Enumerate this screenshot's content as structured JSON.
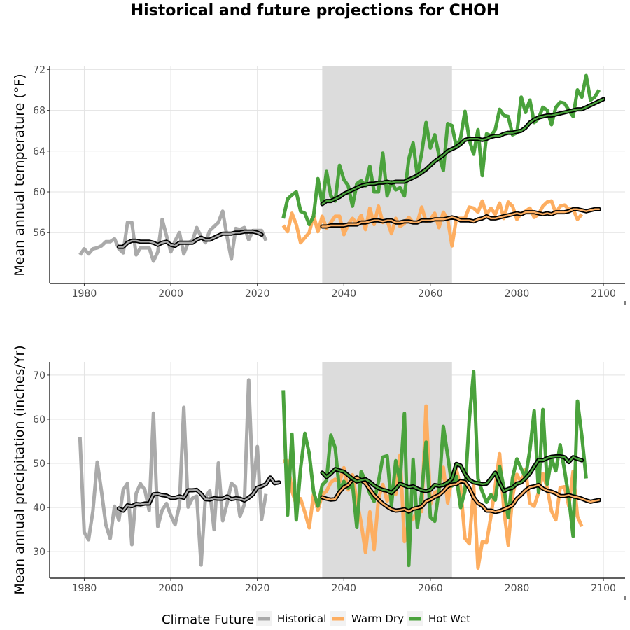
{
  "chart_data": {
    "type": "line",
    "title": "Historical and future projections for CHOH",
    "legend": {
      "title": "Climate Future",
      "placement": "bottom",
      "entries": [
        "Historical",
        "Warm Dry",
        "Hot Wet"
      ]
    },
    "colors": {
      "Historical": "#aaaaaa",
      "Warm Dry": "#fdae61",
      "Hot Wet": "#4aa23c",
      "smooth": "#000000",
      "shade": "#dcdcdc"
    },
    "shaded_period": [
      2035,
      2065
    ],
    "panels": [
      {
        "id": "temperature",
        "ylabel": "Mean annual temperature (°F)",
        "xlim": [
          1972,
          2105
        ],
        "ylim": [
          51,
          72.3
        ],
        "xticks": [
          1980,
          2000,
          2020,
          2040,
          2060,
          2080,
          2100
        ],
        "yticks": [
          56,
          60,
          64,
          68,
          72
        ],
        "grid": true,
        "series": [
          {
            "name": "Historical",
            "x_start": 1979,
            "values": [
              53.8,
              54.4,
              53.9,
              54.4,
              54.5,
              54.7,
              55.1,
              55.1,
              55.4,
              54.4,
              54.0,
              57.0,
              57.0,
              53.8,
              54.5,
              54.5,
              54.5,
              53.2,
              54.1,
              57.3,
              55.7,
              54.1,
              55.2,
              56.0,
              53.9,
              55.0,
              55.2,
              56.5,
              55.6,
              55.0,
              56.2,
              56.6,
              57.0,
              58.1,
              55.6,
              53.4,
              56.4,
              56.3,
              56.5,
              55.3,
              56.2,
              56.2,
              56.2,
              55.2
            ]
          },
          {
            "name": "Historical smooth",
            "x_start": 1988,
            "values": [
              54.6,
              54.6,
              55.0,
              55.2,
              55.2,
              55.1,
              55.1,
              55.1,
              55.0,
              54.8,
              55.0,
              55.1,
              54.8,
              54.7,
              55.0,
              55.0,
              55.0,
              55.0,
              55.3,
              55.5,
              55.3,
              55.3,
              55.5,
              55.7,
              55.9,
              55.9,
              55.9,
              56.0,
              56.0,
              56.1,
              56.1,
              56.1,
              56.0,
              55.8
            ]
          },
          {
            "name": "Warm Dry",
            "x_start": 2026,
            "values": [
              56.7,
              56.1,
              57.9,
              56.8,
              55.0,
              55.5,
              56.0,
              57.7,
              56.1,
              57.6,
              56.4,
              57.0,
              57.6,
              57.6,
              55.8,
              56.8,
              57.4,
              56.9,
              57.7,
              56.3,
              58.4,
              56.8,
              58.6,
              57.0,
              57.2,
              55.9,
              57.4,
              56.6,
              56.9,
              57.5,
              57.0,
              57.0,
              58.5,
              57.1,
              57.3,
              57.9,
              56.5,
              58.0,
              57.3,
              54.7,
              57.4,
              57.4,
              57.4,
              58.5,
              58.4,
              58.0,
              59.1,
              57.8,
              58.4,
              57.8,
              58.9,
              57.4,
              59.0,
              58.6,
              57.3,
              57.9,
              58.1,
              58.4,
              57.5,
              57.8,
              58.6,
              59.0,
              59.1,
              57.9,
              58.6,
              58.7,
              58.3,
              58.3,
              57.3,
              57.8
            ]
          },
          {
            "name": "Warm Dry smooth",
            "x_start": 2035,
            "values": [
              56.6,
              56.6,
              56.7,
              56.7,
              56.7,
              56.7,
              56.8,
              56.8,
              56.8,
              57.0,
              57.0,
              57.1,
              57.2,
              57.2,
              57.1,
              57.2,
              57.2,
              57.0,
              57.0,
              57.1,
              57.1,
              57.0,
              57.0,
              57.2,
              57.2,
              57.2,
              57.3,
              57.3,
              57.3,
              57.4,
              57.5,
              57.4,
              57.2,
              57.2,
              57.2,
              57.1,
              57.3,
              57.4,
              57.6,
              57.4,
              57.4,
              57.5,
              57.6,
              57.7,
              57.8,
              57.9,
              57.8,
              58.0,
              58.0,
              58.0,
              57.9,
              57.8,
              57.9,
              57.8,
              58.0,
              58.0,
              58.0,
              58.1,
              58.3,
              58.3,
              58.2,
              58.1,
              58.2,
              58.3,
              58.3
            ]
          },
          {
            "name": "Hot Wet",
            "x_start": 2026,
            "values": [
              57.4,
              59.3,
              59.7,
              60.0,
              58.1,
              57.9,
              56.8,
              57.6,
              61.3,
              58.8,
              62.0,
              59.6,
              59.1,
              62.6,
              61.2,
              60.6,
              58.6,
              60.8,
              61.1,
              60.6,
              62.5,
              60.0,
              60.0,
              63.8,
              59.6,
              61.0,
              60.2,
              60.4,
              59.6,
              63.2,
              64.8,
              61.6,
              63.8,
              66.8,
              64.3,
              65.6,
              63.6,
              62.1,
              66.7,
              66.5,
              64.4,
              65.3,
              67.9,
              65.1,
              63.7,
              66.1,
              61.6,
              65.7,
              65.5,
              66.1,
              68.1,
              67.5,
              67.4,
              65.6,
              65.8,
              69.3,
              67.8,
              69.0,
              66.8,
              67.2,
              68.3,
              68.0,
              66.6,
              68.3,
              68.8,
              68.7,
              68.0,
              67.4,
              70.0,
              69.3,
              71.4,
              69.0,
              69.3,
              70.0
            ]
          },
          {
            "name": "Hot Wet smooth",
            "x_start": 2035,
            "values": [
              58.8,
              59.1,
              59.1,
              59.3,
              59.5,
              59.8,
              60.0,
              60.2,
              60.4,
              60.6,
              60.7,
              60.8,
              60.8,
              60.9,
              60.9,
              61.0,
              60.9,
              61.0,
              61.0,
              61.0,
              61.2,
              61.4,
              61.6,
              61.9,
              62.2,
              62.6,
              63.0,
              63.3,
              63.6,
              64.0,
              64.2,
              64.4,
              64.7,
              65.1,
              65.2,
              65.2,
              65.2,
              65.1,
              65.2,
              65.4,
              65.5,
              65.5,
              65.7,
              65.8,
              65.8,
              65.9,
              66.0,
              66.3,
              66.8,
              67.1,
              67.3,
              67.4,
              67.5,
              67.5,
              67.6,
              67.7,
              67.8,
              67.9,
              68.0,
              68.1,
              68.1,
              68.3,
              68.5,
              68.7,
              68.9,
              69.1
            ]
          }
        ]
      },
      {
        "id": "precipitation",
        "ylabel": "Mean annual precipitation (inches/Yr)",
        "xlim": [
          1972,
          2105
        ],
        "ylim": [
          24,
          73
        ],
        "xticks": [
          1980,
          2000,
          2020,
          2040,
          2060,
          2080,
          2100
        ],
        "yticks": [
          30,
          40,
          50,
          60,
          70
        ],
        "grid": true,
        "series": [
          {
            "name": "Historical",
            "x_start": 1979,
            "values": [
              55.9,
              34.4,
              32.7,
              39.2,
              50.3,
              43.5,
              36.1,
              33.0,
              40.3,
              37.1,
              44.0,
              45.5,
              31.6,
              43.2,
              45.4,
              44.0,
              39.3,
              61.4,
              35.7,
              39.4,
              40.9,
              38.2,
              36.1,
              40.5,
              62.7,
              40.1,
              42.1,
              42.6,
              27.0,
              42.3,
              43.8,
              35.0,
              50.1,
              37.0,
              40.9,
              45.5,
              44.6,
              38.0,
              40.7,
              68.9,
              43.9,
              53.8,
              37.3,
              43.1
            ]
          },
          {
            "name": "Historical smooth",
            "x_start": 1988,
            "values": [
              39.8,
              39.3,
              40.5,
              40.3,
              40.8,
              40.7,
              40.9,
              40.9,
              43.0,
              43.1,
              42.8,
              42.7,
              42.2,
              42.2,
              42.5,
              42.2,
              43.9,
              43.9,
              44.0,
              43.1,
              41.9,
              41.8,
              42.1,
              42.0,
              42.0,
              42.5,
              41.9,
              42.1,
              42.0,
              41.6,
              42.2,
              43.0,
              44.5,
              44.8,
              45.3,
              46.8,
              45.5,
              45.7
            ]
          },
          {
            "name": "Warm Dry",
            "x_start": 2026,
            "values": [
              50.5,
              50.6,
              43.8,
              40.6,
              42.0,
              38.9,
              35.4,
              43.0,
              39.4,
              42.9,
              43.7,
              45.7,
              46.4,
              45.8,
              49.0,
              44.0,
              47.4,
              41.6,
              36.5,
              29.8,
              39.0,
              30.5,
              42.0,
              45.2,
              41.4,
              44.2,
              43.0,
              51.9,
              32.3,
              36.9,
              37.3,
              39.5,
              39.1,
              63.0,
              40.7,
              43.4,
              43.8,
              49.1,
              41.0,
              46.9,
              48.7,
              44.5,
              33.0,
              31.8,
              44.9,
              26.3,
              32.2,
              32.1,
              38.0,
              44.9,
              52.2,
              39.5,
              31.5,
              42.5,
              47.5,
              45.7,
              48.6,
              41.0,
              40.3,
              43.4,
              47.7,
              44.4,
              39.2,
              37.2,
              44.5,
              44.7,
              40.3,
              48.2,
              38.0,
              35.7
            ]
          },
          {
            "name": "Warm Dry smooth",
            "x_start": 2035,
            "values": [
              42.3,
              42.0,
              41.8,
              41.9,
              43.5,
              44.6,
              45.1,
              46.3,
              46.8,
              46.2,
              45.5,
              44.1,
              42.8,
              41.8,
              40.9,
              40.2,
              39.6,
              39.3,
              39.4,
              39.6,
              39.1,
              39.7,
              39.9,
              40.2,
              41.4,
              41.8,
              42.4,
              42.8,
              43.7,
              44.8,
              45.2,
              45.3,
              46.0,
              45.8,
              44.4,
              42.3,
              41.0,
              40.4,
              39.3,
              39.3,
              39.0,
              39.2,
              39.6,
              40.0,
              40.5,
              42.0,
              42.9,
              43.9,
              44.6,
              44.8,
              45.1,
              44.3,
              43.8,
              43.6,
              43.2,
              42.6,
              42.6,
              42.8,
              42.5,
              42.3,
              42.0,
              41.6,
              41.3,
              41.5,
              41.7
            ]
          },
          {
            "name": "Hot Wet",
            "x_start": 2026,
            "values": [
              66.6,
              38.3,
              56.6,
              37.2,
              48.9,
              56.8,
              52.2,
              43.6,
              40.3,
              45.1,
              46.1,
              56.4,
              53.5,
              43.8,
              45.9,
              44.4,
              45.4,
              35.5,
              48.1,
              46.1,
              43.2,
              41.4,
              45.8,
              51.4,
              51.7,
              40.5,
              50.6,
              45.8,
              61.3,
              26.9,
              50.9,
              35.5,
              43.2,
              54.8,
              37.8,
              36.9,
              44.0,
              58.4,
              51.8,
              44.9,
              47.0,
              40.0,
              43.8,
              60.0,
              70.8,
              46.5,
              43.6,
              41.2,
              42.9,
              41.7,
              49.3,
              44.5,
              37.7,
              46.7,
              51.0,
              48.8,
              46.8,
              53.0,
              61.9,
              43.4,
              62.2,
              45.3,
              51.1,
              48.3,
              54.2,
              48.5,
              42.2,
              33.5,
              64.1,
              56.3,
              46.6
            ]
          },
          {
            "name": "Hot Wet smooth",
            "x_start": 2035,
            "values": [
              47.9,
              46.9,
              47.7,
              48.7,
              48.4,
              48.1,
              47.3,
              46.5,
              45.9,
              46.2,
              46.4,
              45.8,
              45.0,
              44.4,
              44.0,
              43.8,
              43.3,
              44.2,
              45.4,
              45.0,
              44.6,
              44.8,
              44.3,
              43.9,
              43.7,
              44.0,
              45.1,
              44.9,
              45.1,
              45.7,
              46.5,
              49.9,
              49.5,
              47.6,
              46.3,
              45.7,
              45.5,
              45.3,
              45.4,
              46.6,
              47.9,
              45.6,
              43.7,
              44.2,
              44.5,
              45.4,
              45.7,
              46.6,
              47.7,
              49.3,
              50.8,
              50.7,
              51.2,
              51.5,
              51.6,
              51.6,
              51.4,
              50.3,
              51.4,
              51.0,
              50.7
            ]
          }
        ]
      }
    ]
  }
}
